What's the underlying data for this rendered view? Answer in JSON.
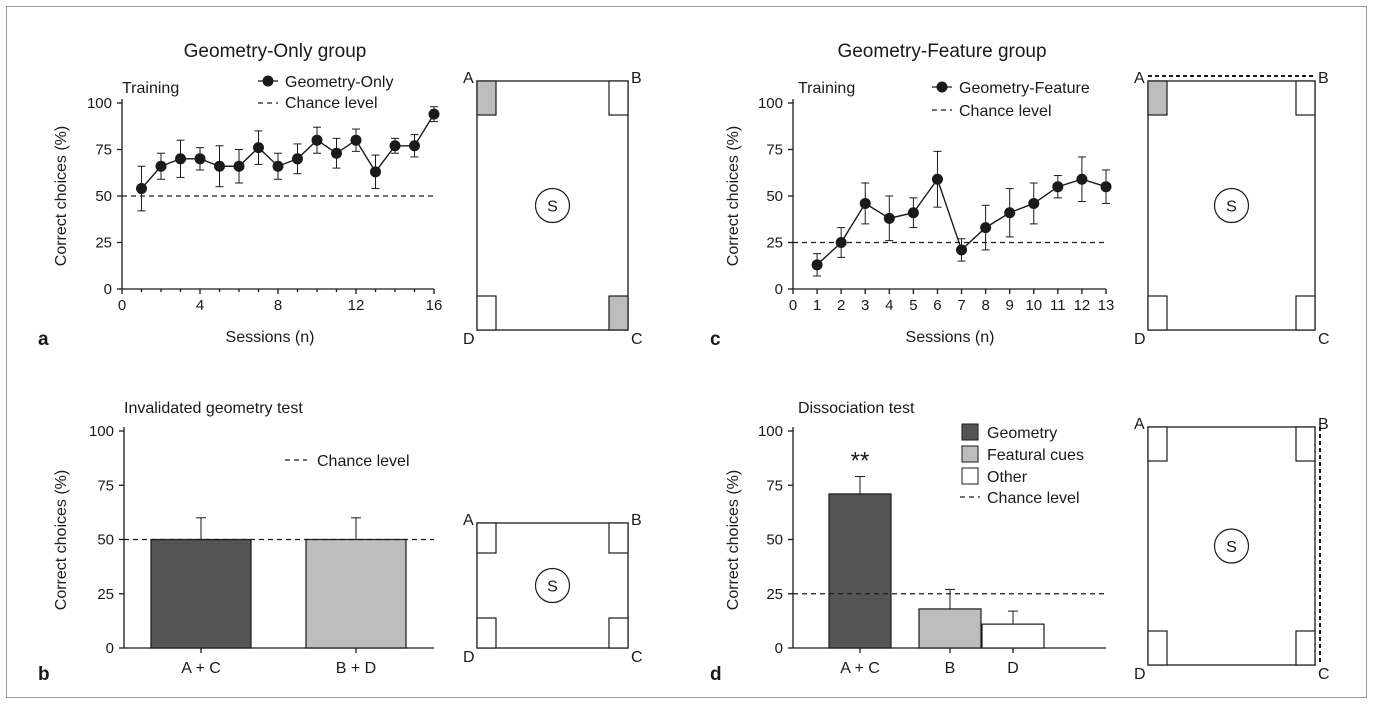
{
  "colors": {
    "geometry": "#545454",
    "featural": "#bdbdbd",
    "other": "#ffffff",
    "ink": "#1a1a1a",
    "target": "#bdbdbd"
  },
  "chart_data": [
    {
      "panel": "a",
      "group_title": "Geometry-Only group",
      "type": "line",
      "subtitle": "Training",
      "xlabel": "Sessions (n)",
      "ylabel": "Correct choices (%)",
      "xlim": [
        0,
        16
      ],
      "ylim": [
        0,
        100
      ],
      "xticks": [
        "0",
        "4",
        "8",
        "12",
        "16"
      ],
      "yticks": [
        "0",
        "25",
        "50",
        "75",
        "100"
      ],
      "chance_level": 50,
      "legend": [
        "Geometry-Only",
        "Chance level"
      ],
      "series": [
        {
          "name": "Geometry-Only",
          "x": [
            1,
            2,
            3,
            4,
            5,
            6,
            7,
            8,
            9,
            10,
            11,
            12,
            13,
            14,
            15,
            16
          ],
          "y": [
            54,
            66,
            70,
            70,
            66,
            66,
            76,
            66,
            70,
            80,
            73,
            80,
            63,
            77,
            77,
            94
          ],
          "err": [
            12,
            7,
            10,
            6,
            11,
            9,
            9,
            7,
            8,
            7,
            8,
            6,
            9,
            4,
            6,
            4
          ]
        }
      ]
    },
    {
      "panel": "b",
      "type": "bar",
      "subtitle": "Invalidated geometry test",
      "ylabel": "Correct choices (%)",
      "ylim": [
        0,
        100
      ],
      "yticks": [
        "0",
        "25",
        "50",
        "75",
        "100"
      ],
      "chance_level": 50,
      "legend": [
        "Chance level"
      ],
      "categories": [
        "A + C",
        "B + D"
      ],
      "values": [
        50,
        50
      ],
      "err": [
        10,
        10
      ]
    },
    {
      "panel": "c",
      "group_title": "Geometry-Feature group",
      "type": "line",
      "subtitle": "Training",
      "xlabel": "Sessions (n)",
      "ylabel": "Correct choices (%)",
      "xlim": [
        0,
        13
      ],
      "ylim": [
        0,
        100
      ],
      "xticks": [
        "0",
        "1",
        "2",
        "3",
        "4",
        "5",
        "6",
        "7",
        "8",
        "9",
        "10",
        "11",
        "12",
        "13"
      ],
      "yticks": [
        "0",
        "25",
        "50",
        "75",
        "100"
      ],
      "chance_level": 25,
      "legend": [
        "Geometry-Feature",
        "Chance level"
      ],
      "series": [
        {
          "name": "Geometry-Feature",
          "x": [
            1,
            2,
            3,
            4,
            5,
            6,
            7,
            8,
            9,
            10,
            11,
            12,
            13
          ],
          "y": [
            13,
            25,
            46,
            38,
            41,
            59,
            21,
            33,
            41,
            46,
            55,
            59,
            55
          ],
          "err": [
            6,
            8,
            11,
            12,
            8,
            15,
            6,
            12,
            13,
            11,
            6,
            12,
            9
          ]
        }
      ]
    },
    {
      "panel": "d",
      "type": "bar",
      "subtitle": "Dissociation test",
      "ylabel": "Correct choices (%)",
      "ylim": [
        0,
        100
      ],
      "yticks": [
        "0",
        "25",
        "50",
        "75",
        "100"
      ],
      "chance_level": 25,
      "legend": [
        "Geometry",
        "Featural cues",
        "Other",
        "Chance level"
      ],
      "categories": [
        "A + C",
        "B",
        "D"
      ],
      "values": [
        71,
        18,
        11
      ],
      "err": [
        8,
        9,
        6
      ],
      "annotation": "**"
    }
  ],
  "arenas": [
    {
      "id": "a",
      "corners": [
        "A",
        "B",
        "C",
        "D"
      ],
      "targets": [
        "A",
        "C"
      ],
      "center": "S",
      "dashed_wall": "none"
    },
    {
      "id": "b",
      "corners": [
        "A",
        "B",
        "C",
        "D"
      ],
      "targets": [],
      "center": "S",
      "dashed_wall": "none"
    },
    {
      "id": "c",
      "corners": [
        "A",
        "B",
        "C",
        "D"
      ],
      "targets": [
        "A"
      ],
      "center": "S",
      "dashed_wall": "top"
    },
    {
      "id": "d",
      "corners": [
        "A",
        "B",
        "C",
        "D"
      ],
      "targets": [],
      "center": "S",
      "dashed_wall": "right"
    }
  ]
}
